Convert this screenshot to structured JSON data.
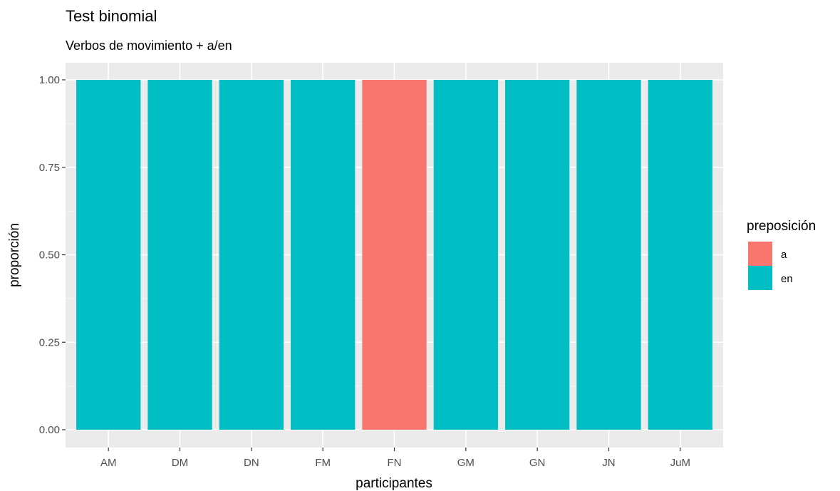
{
  "chart_data": {
    "type": "bar",
    "title": "Test binomial",
    "subtitle": "Verbos de movimiento + a/en",
    "xlabel": "participantes",
    "ylabel": "proporción",
    "ylim": [
      0,
      1
    ],
    "yticks": [
      "0.00",
      "0.25",
      "0.50",
      "0.75",
      "1.00"
    ],
    "ytick_values": [
      0,
      0.25,
      0.5,
      0.75,
      1
    ],
    "categories": [
      "AM",
      "DM",
      "DN",
      "FM",
      "FN",
      "GM",
      "GN",
      "JN",
      "JuM"
    ],
    "series": [
      {
        "name": "a",
        "color": "#F8766D",
        "values": [
          0,
          0,
          0,
          0,
          1,
          0,
          0,
          0,
          0
        ]
      },
      {
        "name": "en",
        "color": "#00BFC4",
        "values": [
          1,
          1,
          1,
          1,
          0,
          1,
          1,
          1,
          1
        ]
      }
    ],
    "stacked": true,
    "grid": true,
    "legend": {
      "title": "preposición",
      "placement": "right"
    },
    "panel_background": "#EBEBEB"
  }
}
